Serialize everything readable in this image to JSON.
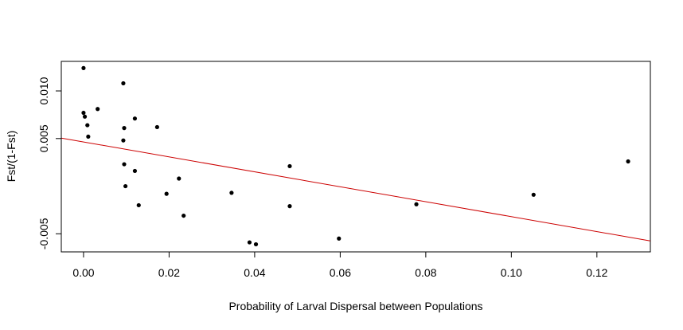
{
  "chart_data": {
    "type": "scatter",
    "title": "",
    "xlabel": "Probability of Larval Dispersal between Populations",
    "ylabel": "Fst/(1-Fst)",
    "xlim": [
      -0.0052,
      0.1325
    ],
    "ylim": [
      -0.0069,
      0.0131
    ],
    "x_ticks": [
      0.0,
      0.02,
      0.04,
      0.06,
      0.08,
      0.1,
      0.12
    ],
    "x_tick_labels": [
      "0.00",
      "0.02",
      "0.04",
      "0.06",
      "0.08",
      "0.10",
      "0.12"
    ],
    "y_ticks": [
      -0.005,
      0.005,
      0.01
    ],
    "y_tick_labels": [
      "-0.005",
      "0.005",
      "0.010"
    ],
    "grid": false,
    "point_color": "#000000",
    "fit_line_color": "#cc0000",
    "points": [
      {
        "x": 0.0,
        "y": 0.0124
      },
      {
        "x": 0.0,
        "y": 0.0077
      },
      {
        "x": 0.0003,
        "y": 0.0073
      },
      {
        "x": 0.0009,
        "y": 0.0064
      },
      {
        "x": 0.0011,
        "y": 0.0052
      },
      {
        "x": 0.0033,
        "y": 0.0081
      },
      {
        "x": 0.0093,
        "y": 0.0108
      },
      {
        "x": 0.0093,
        "y": 0.0048
      },
      {
        "x": 0.0095,
        "y": 0.0061
      },
      {
        "x": 0.0095,
        "y": 0.0023
      },
      {
        "x": 0.0098,
        "y": 0.0
      },
      {
        "x": 0.012,
        "y": 0.0071
      },
      {
        "x": 0.012,
        "y": 0.0016
      },
      {
        "x": 0.0129,
        "y": -0.002
      },
      {
        "x": 0.0172,
        "y": 0.0062
      },
      {
        "x": 0.0194,
        "y": -0.0008
      },
      {
        "x": 0.0223,
        "y": 0.0008
      },
      {
        "x": 0.0234,
        "y": -0.0031
      },
      {
        "x": 0.0346,
        "y": -0.0007
      },
      {
        "x": 0.0388,
        "y": -0.0059
      },
      {
        "x": 0.0403,
        "y": -0.0061
      },
      {
        "x": 0.0482,
        "y": 0.0021
      },
      {
        "x": 0.0482,
        "y": -0.0021
      },
      {
        "x": 0.0597,
        "y": -0.0055
      },
      {
        "x": 0.0778,
        "y": -0.0019
      },
      {
        "x": 0.1052,
        "y": -0.0009
      },
      {
        "x": 0.1273,
        "y": 0.0026
      }
    ],
    "fit_line": {
      "x": [
        -0.0052,
        0.1325
      ],
      "y": [
        0.00505,
        -0.00575
      ]
    }
  }
}
